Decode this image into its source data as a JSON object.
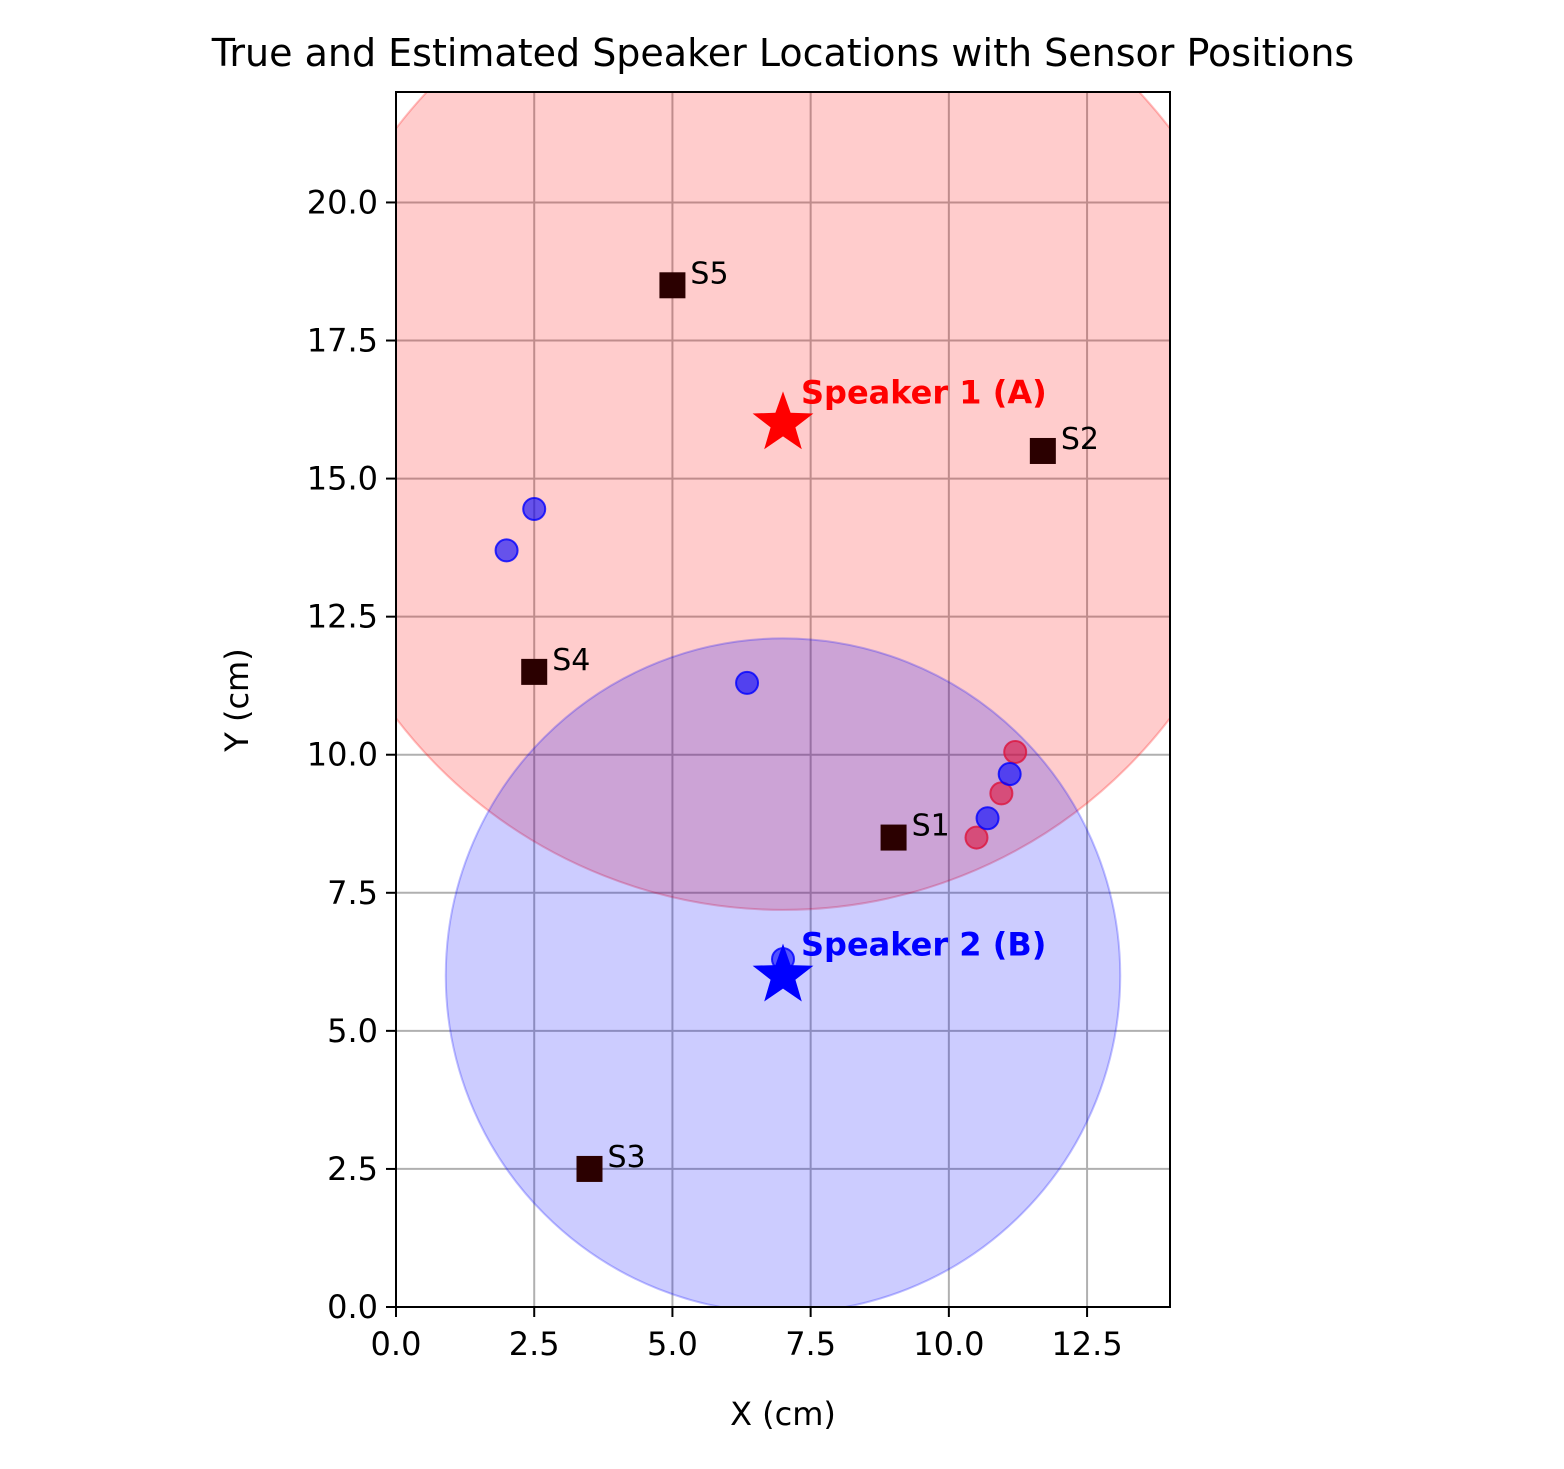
{
  "chart_data": {
    "type": "scatter",
    "title": "True and Estimated Speaker Locations with Sensor Positions",
    "xlabel": "X (cm)",
    "ylabel": "Y (cm)",
    "xlim": [
      0,
      14
    ],
    "ylim": [
      0,
      22
    ],
    "xticks": [
      0.0,
      2.5,
      5.0,
      7.5,
      10.0,
      12.5
    ],
    "yticks": [
      0.0,
      2.5,
      5.0,
      7.5,
      10.0,
      12.5,
      15.0,
      17.5,
      20.0
    ],
    "xtick_labels": [
      "0.0",
      "2.5",
      "5.0",
      "7.5",
      "10.0",
      "12.5"
    ],
    "ytick_labels": [
      "0.0",
      "2.5",
      "5.0",
      "7.5",
      "10.0",
      "12.5",
      "15.0",
      "17.5",
      "20.0"
    ],
    "grid": true,
    "speakers": [
      {
        "label": "Speaker 1 (A)",
        "x": 7.0,
        "y": 16.0,
        "radius": 8.8,
        "color": "#ff0000",
        "fill": "#ff0000"
      },
      {
        "label": "Speaker 2 (B)",
        "x": 7.0,
        "y": 6.0,
        "radius": 6.1,
        "color": "#0000ff",
        "fill": "#0000ff"
      }
    ],
    "sensors": [
      {
        "label": "S1",
        "x": 9.0,
        "y": 8.5
      },
      {
        "label": "S2",
        "x": 11.7,
        "y": 15.5
      },
      {
        "label": "S3",
        "x": 3.5,
        "y": 2.5
      },
      {
        "label": "S4",
        "x": 2.5,
        "y": 11.5
      },
      {
        "label": "S5",
        "x": 5.0,
        "y": 18.5
      }
    ],
    "estimates_speaker_1": [
      {
        "x": 11.2,
        "y": 10.05
      },
      {
        "x": 10.95,
        "y": 9.3
      },
      {
        "x": 10.5,
        "y": 8.5
      }
    ],
    "estimates_speaker_2": [
      {
        "x": 2.5,
        "y": 14.45
      },
      {
        "x": 2.0,
        "y": 13.7
      },
      {
        "x": 6.35,
        "y": 11.3
      },
      {
        "x": 11.1,
        "y": 9.65
      },
      {
        "x": 10.7,
        "y": 8.85
      },
      {
        "x": 7.0,
        "y": 6.3
      }
    ],
    "colors": {
      "sensor": "#2b0000",
      "estimate_1": "#dc143c",
      "estimate_2": "#0000ff",
      "grid": "#b0b0b0"
    }
  }
}
